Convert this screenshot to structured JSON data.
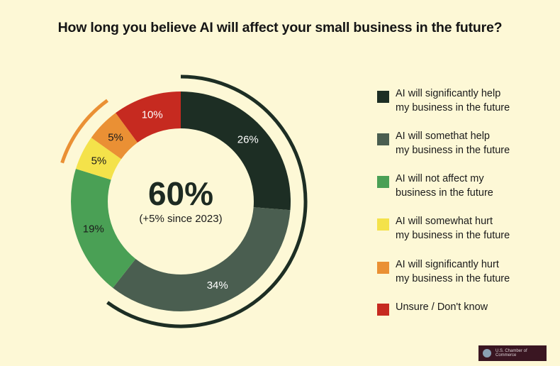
{
  "chart_data": {
    "type": "donut",
    "title": "How long you believe AI will affect your small business in the future?",
    "center": {
      "value": "60%",
      "subtitle": "(+5% since 2023)"
    },
    "categories": [
      "AI will significantly help my business in the future",
      "AI will somethat help my business in the future",
      "AI will not affect my business in the future",
      "AI will somewhat hurt my business in the future",
      "AI will significantly hurt my business in the future",
      "Unsure / Don't know"
    ],
    "values": [
      26,
      34,
      19,
      5,
      5,
      10
    ],
    "labels": [
      "26%",
      "34%",
      "19%",
      "5%",
      "5%",
      "10%"
    ],
    "colors": [
      "#1d2e24",
      "#4a5e50",
      "#4aa055",
      "#f4e24a",
      "#ea9034",
      "#c62a20"
    ],
    "label_colors": [
      "#ffffff",
      "#ffffff",
      "#1b1b1b",
      "#1b1b1b",
      "#1b1b1b",
      "#ffffff"
    ],
    "legend_position": "right"
  },
  "legend": [
    {
      "line1": "AI will significantly help",
      "line2": "my business in the future"
    },
    {
      "line1": "AI will somethat help",
      "line2": "my business in the future"
    },
    {
      "line1": "AI will not affect my",
      "line2": "business in the future"
    },
    {
      "line1": "AI will somewhat hurt",
      "line2": "my business in the future"
    },
    {
      "line1": "AI will significantly hurt",
      "line2": "my business in the future"
    },
    {
      "line1": "Unsure / Don't know",
      "line2": ""
    }
  ],
  "logo": {
    "text": "U.S. Chamber of Commerce"
  }
}
